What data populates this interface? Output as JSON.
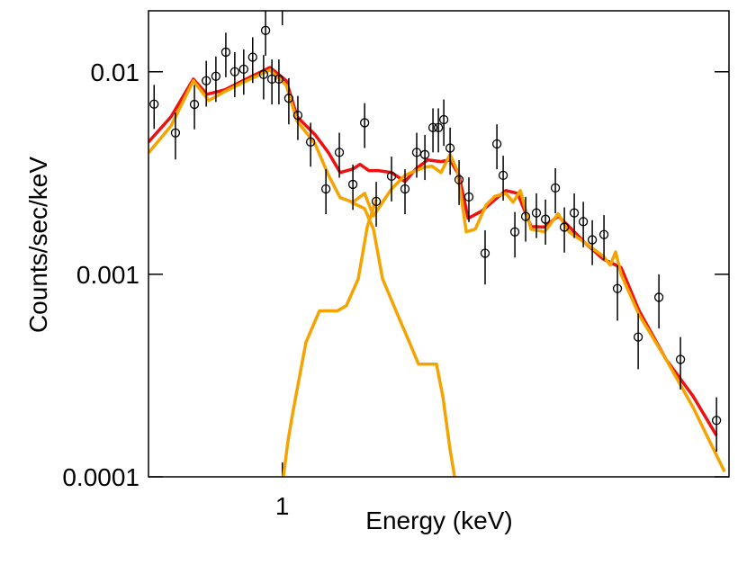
{
  "chart_data": {
    "type": "scatter",
    "x_label": "Energy (keV)",
    "y_label": "Counts/sec/keV",
    "xlim": [
      0.6,
      5.5
    ],
    "ylim": [
      0.0001,
      0.02
    ],
    "xlog": true,
    "ylog": true,
    "xticks": [
      1
    ],
    "yticks": [
      0.0001,
      0.001,
      0.01
    ],
    "data": {
      "color": "#000000",
      "x": [
        0.613,
        0.665,
        0.715,
        0.748,
        0.776,
        0.806,
        0.834,
        0.863,
        0.893,
        0.931,
        0.938,
        0.961,
        0.987,
        1.025,
        1.061,
        1.114,
        1.181,
        1.243,
        1.309,
        1.369,
        1.431,
        1.517,
        1.597,
        1.67,
        1.723,
        1.777,
        1.814,
        1.852,
        1.897,
        1.963,
        2.038,
        2.168,
        2.268,
        2.323,
        2.429,
        2.531,
        2.637,
        2.73,
        2.835,
        2.934,
        3.047,
        3.154,
        3.264,
        3.413,
        3.593,
        3.889,
        4.209,
        4.57,
        5.244
      ],
      "values": [
        0.00692,
        0.00499,
        0.0069,
        0.00903,
        0.0095,
        0.0125,
        0.01,
        0.0103,
        0.0118,
        0.0097,
        0.016,
        0.0092,
        0.0092,
        0.0074,
        0.0061,
        0.0045,
        0.00264,
        0.004,
        0.00278,
        0.0056,
        0.00229,
        0.00305,
        0.00264,
        0.004,
        0.0039,
        0.0053,
        0.0053,
        0.0058,
        0.0042,
        0.00293,
        0.00241,
        0.00127,
        0.0044,
        0.00308,
        0.00162,
        0.00193,
        0.00201,
        0.00187,
        0.00267,
        0.00171,
        0.00201,
        0.00182,
        0.00148,
        0.00157,
        0.00085,
        0.00049,
        0.00077,
        0.00038,
        0.00019
      ],
      "errors": [
        0.0017,
        0.0013,
        0.0017,
        0.0023,
        0.0024,
        0.0031,
        0.0025,
        0.0026,
        0.003,
        0.0024,
        0.004,
        0.0023,
        0.0023,
        0.0019,
        0.0015,
        0.0011,
        0.00066,
        0.001,
        0.0007,
        0.0014,
        0.00057,
        0.00076,
        0.00066,
        0.001,
        0.00098,
        0.0013,
        0.0013,
        0.0015,
        0.0011,
        0.00073,
        0.0006,
        0.00038,
        0.0011,
        0.00077,
        0.00041,
        0.00048,
        0.0005,
        0.00047,
        0.00067,
        0.00043,
        0.0005,
        0.00046,
        0.00037,
        0.00039,
        0.00026,
        0.00015,
        0.00023,
        0.00011,
        5.7e-05
      ]
    },
    "models": [
      {
        "color": "#f5a300",
        "x": [
          1.3,
          1.369,
          1.416,
          1.466,
          1.543,
          1.625,
          1.682,
          1.759,
          1.801,
          1.845,
          1.897,
          1.93
        ],
        "values": [
          0.00227,
          0.00211,
          0.00167,
          0.00095,
          0.00066,
          0.00046,
          0.00036,
          0.00036,
          0.00036,
          0.00025,
          0.000136,
          0.0001
        ]
      },
      {
        "color": "#f5a300",
        "x": [
          1.004,
          1.022,
          1.04,
          1.094,
          1.152,
          1.234,
          1.277,
          1.336,
          1.383,
          1.431
        ],
        "values": [
          0.0001,
          0.000151,
          0.000205,
          0.00046,
          0.00066,
          0.00066,
          0.0007,
          0.00095,
          0.00172,
          0.00234
        ]
      },
      {
        "color": "#ee1111",
        "x": [
          0.6,
          0.654,
          0.712,
          0.75,
          0.803,
          0.86,
          0.954,
          1.015,
          1.058,
          1.133,
          1.193,
          1.247,
          1.309,
          1.345,
          1.392,
          1.441,
          1.517,
          1.597,
          1.664,
          1.741,
          1.832,
          1.897,
          1.963,
          2.032,
          2.139,
          2.252,
          2.347,
          2.455,
          2.584,
          2.721,
          2.865,
          2.965,
          3.175,
          3.401,
          3.643,
          3.903,
          4.326,
          4.796,
          5.244
        ],
        "values": [
          0.0045,
          0.006,
          0.0092,
          0.00774,
          0.00815,
          0.00903,
          0.0105,
          0.00903,
          0.006,
          0.00489,
          0.00398,
          0.00318,
          0.00331,
          0.00349,
          0.00325,
          0.00325,
          0.00318,
          0.00287,
          0.00331,
          0.00367,
          0.0036,
          0.00367,
          0.00308,
          0.00189,
          0.00205,
          0.00234,
          0.00259,
          0.00251,
          0.00172,
          0.00171,
          0.00194,
          0.00176,
          0.00143,
          0.00119,
          0.00108,
          0.00066,
          0.00038,
          0.00025,
          0.00016
        ]
      },
      {
        "color": "#f5a300",
        "x": [
          0.6,
          0.654,
          0.712,
          0.755,
          0.803,
          0.86,
          0.954,
          1.015,
          1.058,
          1.133,
          1.193,
          1.247,
          1.309,
          1.369,
          1.416,
          1.466,
          1.517,
          1.597,
          1.664,
          1.723,
          1.771,
          1.832,
          1.897,
          1.95,
          2.018,
          2.088,
          2.176,
          2.252,
          2.347,
          2.413,
          2.48,
          2.584,
          2.721,
          2.865,
          2.986,
          3.175,
          3.401,
          3.496,
          3.568,
          3.643,
          3.903,
          4.326,
          4.796,
          5.408
        ],
        "values": [
          0.00398,
          0.00541,
          0.00903,
          0.00721,
          0.00799,
          0.00884,
          0.0102,
          0.00858,
          0.0057,
          0.00441,
          0.00308,
          0.00239,
          0.00227,
          0.00251,
          0.00194,
          0.00227,
          0.00264,
          0.00308,
          0.00325,
          0.00338,
          0.00342,
          0.00318,
          0.0039,
          0.00325,
          0.00162,
          0.00167,
          0.0022,
          0.00243,
          0.00251,
          0.00227,
          0.00259,
          0.00167,
          0.00162,
          0.00199,
          0.00162,
          0.00143,
          0.00123,
          0.00111,
          0.00129,
          0.001,
          0.00063,
          0.00038,
          0.00022,
          0.000106
        ]
      }
    ]
  }
}
